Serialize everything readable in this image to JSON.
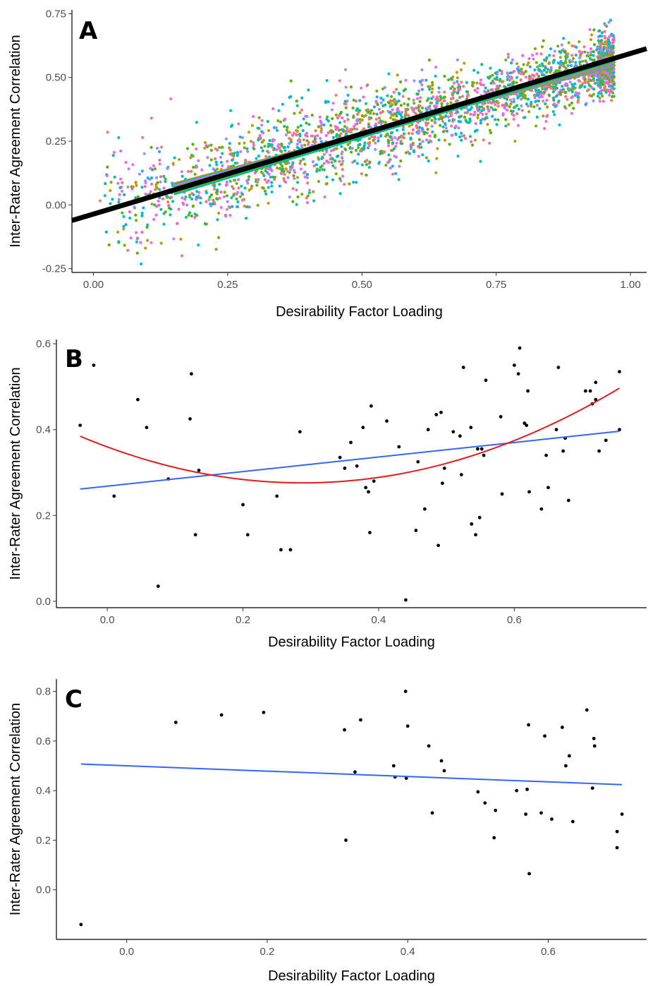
{
  "chart_data": [
    {
      "panel": "A",
      "type": "scatter",
      "xlabel": "Desirability Factor Loading",
      "ylabel": "Inter-Rater Agreement Correlation",
      "xlim": [
        -0.04,
        1.03
      ],
      "ylim": [
        -0.265,
        0.765
      ],
      "xticks": [
        0.0,
        0.25,
        0.5,
        0.75,
        1.0
      ],
      "xtick_labels": [
        "0.00",
        "0.25",
        "0.50",
        "0.75",
        "1.00"
      ],
      "yticks": [
        -0.25,
        0.0,
        0.25,
        0.5,
        0.75
      ],
      "ytick_labels": [
        "-0.25",
        "0.00",
        "0.25",
        "0.50",
        "0.75"
      ],
      "grid": false,
      "legend": "none",
      "point_cloud": {
        "description": "dense multi-coloured cloud of points, one colour per group",
        "approx_points": 2600,
        "x_range": [
          0.01,
          0.97
        ],
        "y_trend": {
          "intercept": -0.025,
          "slope": 0.6
        },
        "noise_sd": 0.085,
        "colors": [
          "#F8766D",
          "#C49A00",
          "#53B400",
          "#00C094",
          "#00B6EB",
          "#A58AFF",
          "#FB61D7",
          "#E76BF3",
          "#00BFC4",
          "#7CAE00"
        ]
      },
      "group_fit_lines": {
        "count": 24,
        "x_range": [
          0.15,
          0.97
        ],
        "slope_range": [
          0.56,
          0.64
        ],
        "intercept_range": [
          -0.055,
          0.0
        ],
        "colors": [
          "#F8766D",
          "#C49A00",
          "#53B400",
          "#00C094",
          "#00B6EB",
          "#A58AFF",
          "#FB61D7",
          "#E76BF3",
          "#00BFC4",
          "#7CAE00"
        ]
      },
      "overall_fit": {
        "intercept": -0.036,
        "slope": 0.63,
        "color": "#000000",
        "x_range": [
          -0.04,
          1.03
        ]
      }
    },
    {
      "panel": "B",
      "type": "scatter",
      "xlabel": "Desirability Factor Loading",
      "ylabel": "Inter-Rater Agreement Correlation",
      "xlim": [
        -0.075,
        0.795
      ],
      "ylim": [
        -0.015,
        0.61
      ],
      "xticks": [
        0.0,
        0.2,
        0.4,
        0.6
      ],
      "xtick_labels": [
        "0.0",
        "0.2",
        "0.4",
        "0.6"
      ],
      "yticks": [
        0.0,
        0.2,
        0.4,
        0.6
      ],
      "ytick_labels": [
        "0.0",
        "0.2",
        "0.4",
        "0.6"
      ],
      "grid": false,
      "legend": "none",
      "points": [
        [
          -0.04,
          0.41
        ],
        [
          -0.02,
          0.55
        ],
        [
          0.01,
          0.245
        ],
        [
          0.045,
          0.47
        ],
        [
          0.058,
          0.405
        ],
        [
          0.075,
          0.035
        ],
        [
          0.09,
          0.285
        ],
        [
          0.122,
          0.425
        ],
        [
          0.124,
          0.53
        ],
        [
          0.13,
          0.155
        ],
        [
          0.135,
          0.305
        ],
        [
          0.2,
          0.225
        ],
        [
          0.207,
          0.155
        ],
        [
          0.25,
          0.245
        ],
        [
          0.256,
          0.12
        ],
        [
          0.27,
          0.12
        ],
        [
          0.284,
          0.395
        ],
        [
          0.343,
          0.335
        ],
        [
          0.35,
          0.31
        ],
        [
          0.359,
          0.37
        ],
        [
          0.368,
          0.315
        ],
        [
          0.377,
          0.405
        ],
        [
          0.381,
          0.265
        ],
        [
          0.385,
          0.255
        ],
        [
          0.387,
          0.16
        ],
        [
          0.389,
          0.455
        ],
        [
          0.393,
          0.28
        ],
        [
          0.412,
          0.42
        ],
        [
          0.43,
          0.36
        ],
        [
          0.44,
          0.003
        ],
        [
          0.455,
          0.165
        ],
        [
          0.458,
          0.325
        ],
        [
          0.468,
          0.215
        ],
        [
          0.473,
          0.4
        ],
        [
          0.485,
          0.435
        ],
        [
          0.488,
          0.13
        ],
        [
          0.492,
          0.44
        ],
        [
          0.494,
          0.275
        ],
        [
          0.497,
          0.31
        ],
        [
          0.51,
          0.395
        ],
        [
          0.52,
          0.385
        ],
        [
          0.522,
          0.295
        ],
        [
          0.525,
          0.545
        ],
        [
          0.536,
          0.405
        ],
        [
          0.537,
          0.18
        ],
        [
          0.543,
          0.155
        ],
        [
          0.546,
          0.355
        ],
        [
          0.549,
          0.195
        ],
        [
          0.552,
          0.355
        ],
        [
          0.555,
          0.34
        ],
        [
          0.558,
          0.515
        ],
        [
          0.58,
          0.43
        ],
        [
          0.582,
          0.25
        ],
        [
          0.6,
          0.55
        ],
        [
          0.606,
          0.53
        ],
        [
          0.608,
          0.59
        ],
        [
          0.615,
          0.415
        ],
        [
          0.618,
          0.41
        ],
        [
          0.62,
          0.49
        ],
        [
          0.622,
          0.255
        ],
        [
          0.64,
          0.215
        ],
        [
          0.647,
          0.34
        ],
        [
          0.65,
          0.265
        ],
        [
          0.662,
          0.4
        ],
        [
          0.665,
          0.545
        ],
        [
          0.672,
          0.35
        ],
        [
          0.675,
          0.38
        ],
        [
          0.68,
          0.235
        ],
        [
          0.705,
          0.49
        ],
        [
          0.712,
          0.49
        ],
        [
          0.715,
          0.46
        ],
        [
          0.72,
          0.47
        ],
        [
          0.72,
          0.51
        ],
        [
          0.725,
          0.35
        ],
        [
          0.735,
          0.375
        ],
        [
          0.755,
          0.535
        ],
        [
          0.755,
          0.4
        ]
      ],
      "linear_fit": {
        "intercept": 0.2683,
        "slope": 0.1695,
        "color": "#3366FF",
        "x_range": [
          -0.04,
          0.755
        ]
      },
      "quadratic_fit": {
        "a": 1.0113,
        "b": -0.5822,
        "c": 0.3597,
        "color": "#E41A1C",
        "x_range": [
          -0.04,
          0.755
        ]
      }
    },
    {
      "panel": "C",
      "type": "scatter",
      "xlabel": "Desirability Factor Loading",
      "ylabel": "Inter-Rater Agreement Correlation",
      "xlim": [
        -0.1,
        0.74
      ],
      "ylim": [
        -0.2,
        0.85
      ],
      "xticks": [
        0.0,
        0.2,
        0.4,
        0.6
      ],
      "xtick_labels": [
        "0.0",
        "0.2",
        "0.4",
        "0.6"
      ],
      "yticks": [
        0.0,
        0.2,
        0.4,
        0.6,
        0.8
      ],
      "ytick_labels": [
        "0.0",
        "0.2",
        "0.4",
        "0.6",
        "0.8"
      ],
      "grid": false,
      "legend": "none",
      "points": [
        [
          -0.065,
          -0.14
        ],
        [
          0.07,
          0.675
        ],
        [
          0.135,
          0.705
        ],
        [
          0.195,
          0.715
        ],
        [
          0.31,
          0.645
        ],
        [
          0.312,
          0.2
        ],
        [
          0.325,
          0.475
        ],
        [
          0.333,
          0.685
        ],
        [
          0.38,
          0.5
        ],
        [
          0.382,
          0.455
        ],
        [
          0.397,
          0.8
        ],
        [
          0.398,
          0.45
        ],
        [
          0.4,
          0.66
        ],
        [
          0.43,
          0.58
        ],
        [
          0.435,
          0.31
        ],
        [
          0.448,
          0.52
        ],
        [
          0.452,
          0.48
        ],
        [
          0.5,
          0.395
        ],
        [
          0.51,
          0.35
        ],
        [
          0.523,
          0.21
        ],
        [
          0.525,
          0.32
        ],
        [
          0.555,
          0.4
        ],
        [
          0.568,
          0.305
        ],
        [
          0.57,
          0.405
        ],
        [
          0.572,
          0.665
        ],
        [
          0.573,
          0.065
        ],
        [
          0.59,
          0.31
        ],
        [
          0.595,
          0.62
        ],
        [
          0.605,
          0.285
        ],
        [
          0.62,
          0.655
        ],
        [
          0.625,
          0.5
        ],
        [
          0.63,
          0.54
        ],
        [
          0.635,
          0.275
        ],
        [
          0.655,
          0.725
        ],
        [
          0.663,
          0.41
        ],
        [
          0.665,
          0.61
        ],
        [
          0.666,
          0.58
        ],
        [
          0.698,
          0.235
        ],
        [
          0.698,
          0.17
        ],
        [
          0.705,
          0.305
        ]
      ],
      "linear_fit": {
        "intercept": 0.5,
        "slope": -0.108,
        "color": "#3366FF",
        "x_range": [
          -0.065,
          0.705
        ]
      }
    }
  ]
}
